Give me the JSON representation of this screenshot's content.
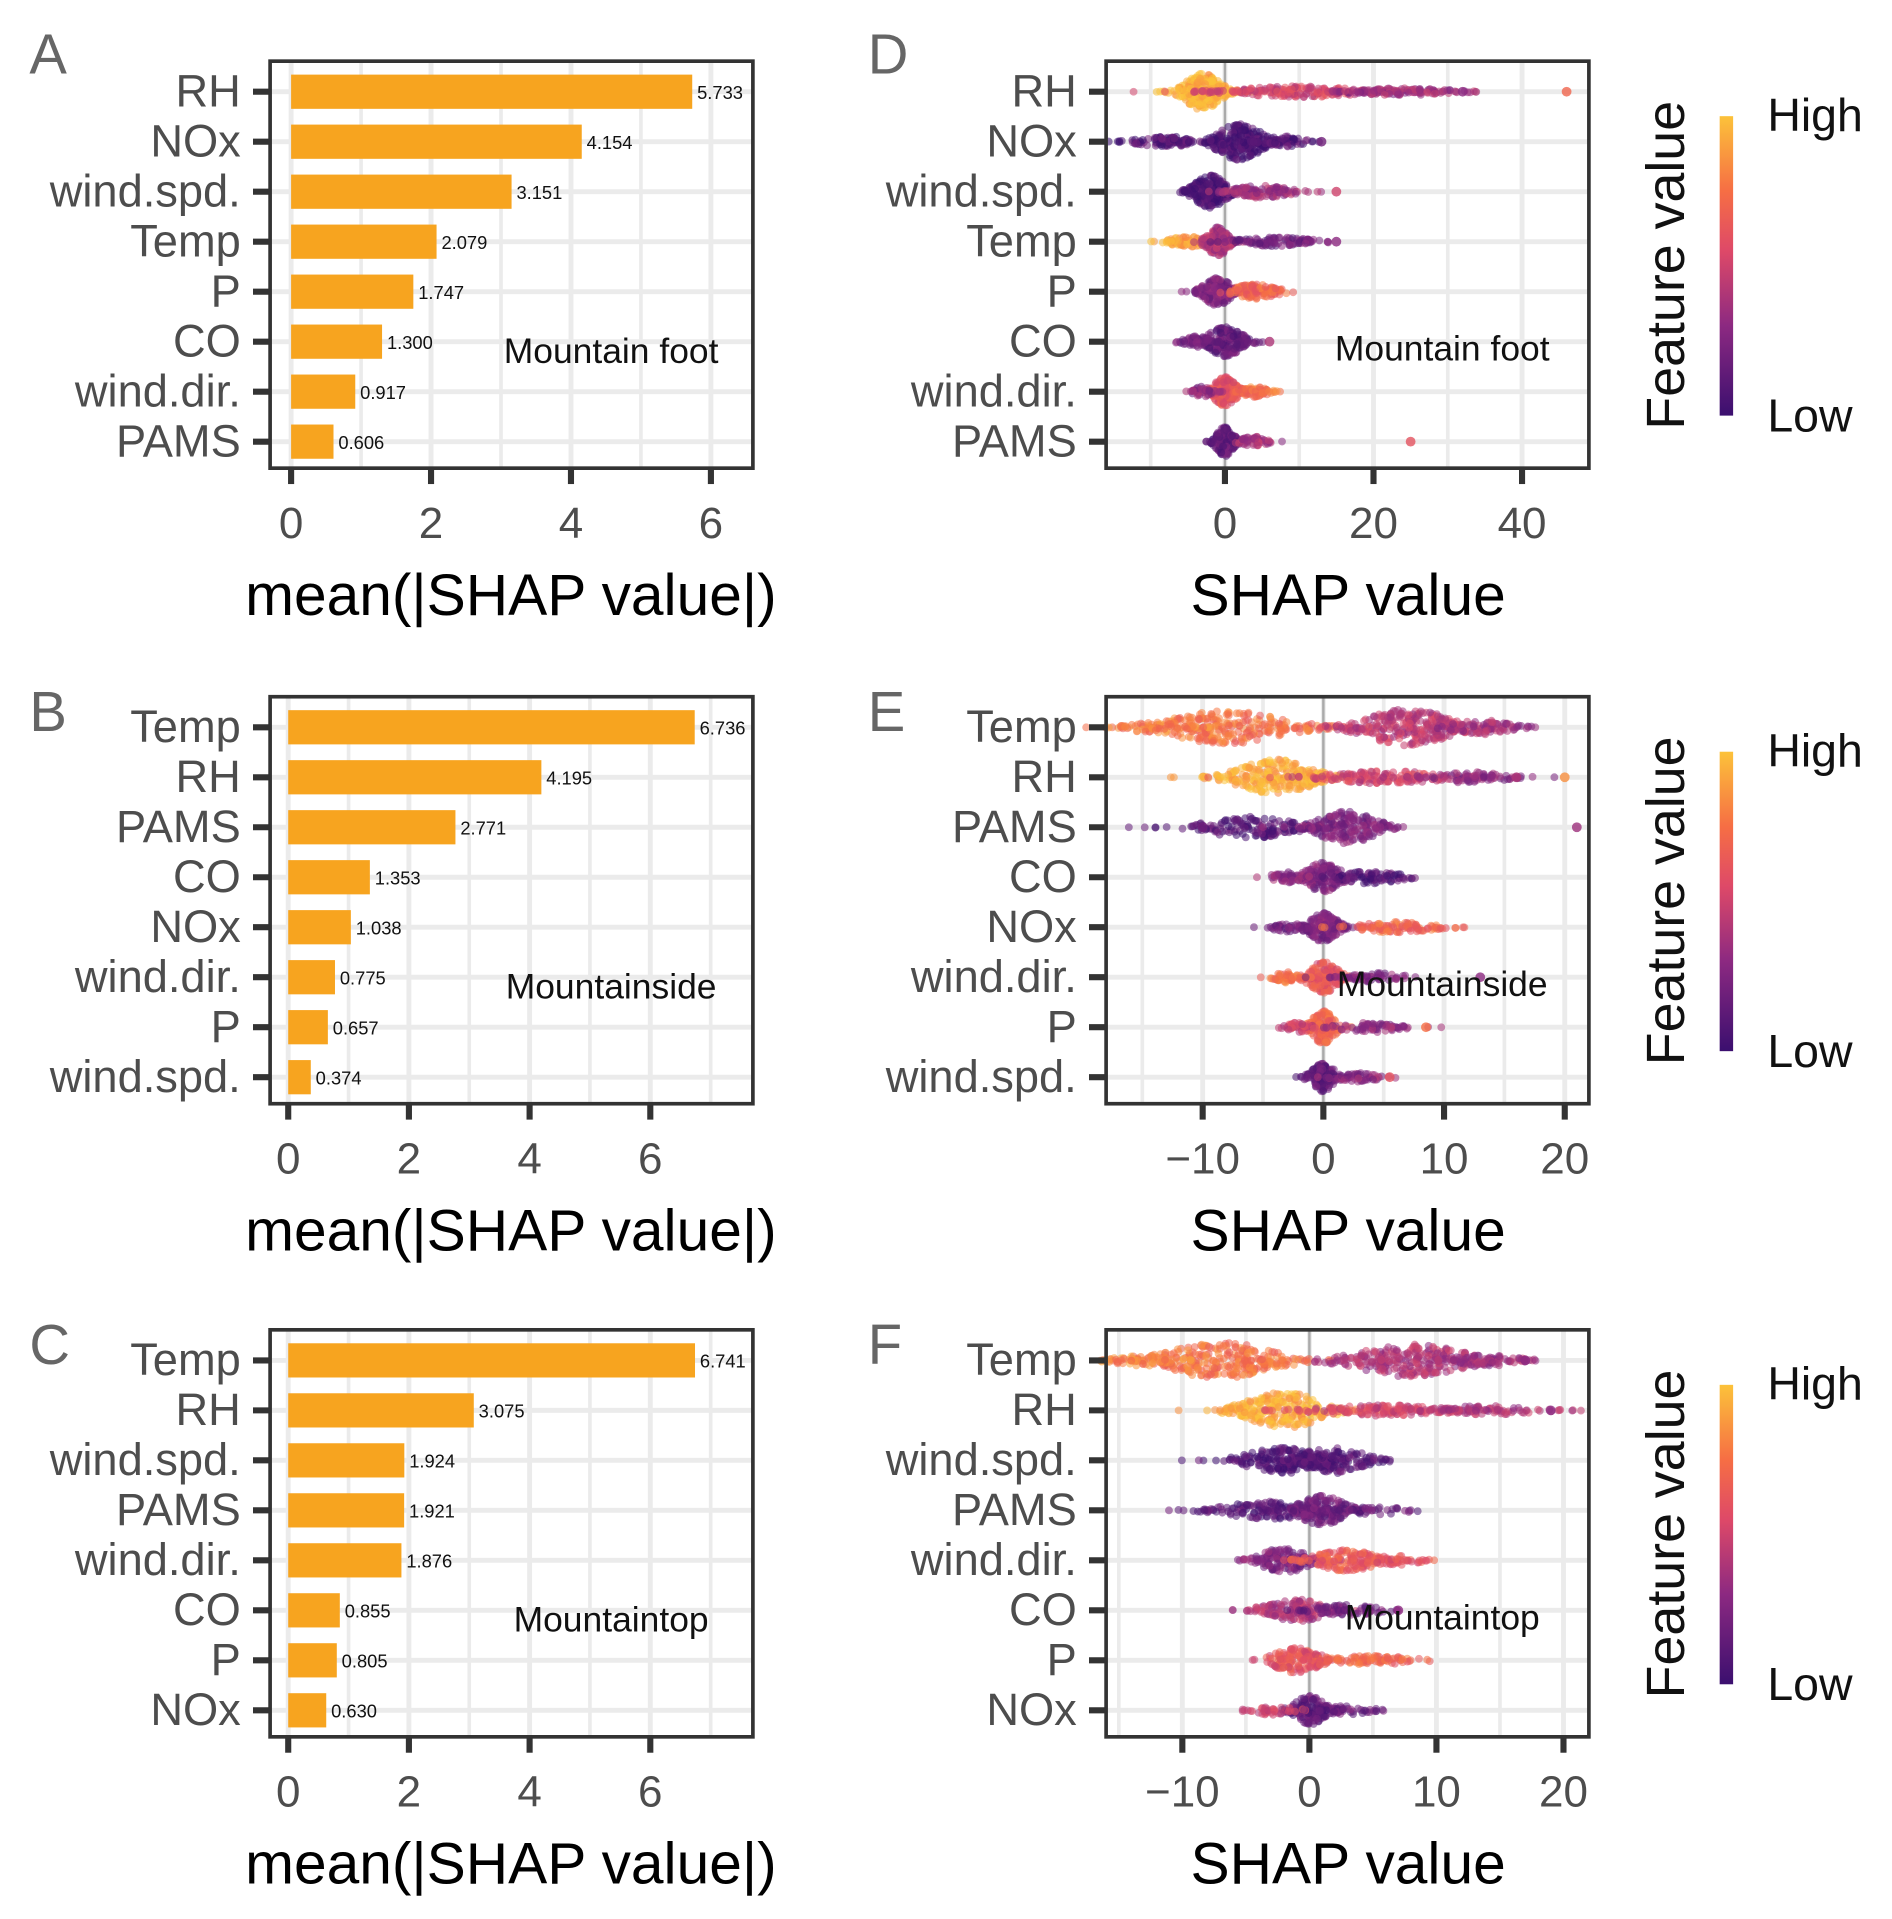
{
  "colors": {
    "bar": "#f7a41f",
    "grid": "#ebebeb",
    "frame": "#333333",
    "tick_text": "#4d4d4d",
    "colormap": [
      "#3b0f6f",
      "#8c2981",
      "#de4968",
      "#f66e44",
      "#fbb13c",
      "#fcd13a"
    ]
  },
  "chart_data": [
    {
      "id": "A",
      "type": "bar",
      "panel_label": "A",
      "annotation": "Mountain foot",
      "xlabel": "mean(|SHAP value|)",
      "xticks": [
        "0",
        "2",
        "4",
        "6"
      ],
      "xtick_values": [
        0,
        2,
        4,
        6
      ],
      "xlim": [
        -0.3,
        6.6
      ],
      "categories": [
        "RH",
        "NOx",
        "wind.spd.",
        "Temp",
        "P",
        "CO",
        "wind.dir.",
        "PAMS"
      ],
      "values": [
        5.733,
        4.154,
        3.151,
        2.079,
        1.747,
        1.3,
        0.917,
        0.606
      ],
      "labels": [
        "5.733",
        "4.154",
        "3.151",
        "2.079",
        "1.747",
        "1.300",
        "0.917",
        "0.606"
      ]
    },
    {
      "id": "B",
      "type": "bar",
      "panel_label": "B",
      "annotation": "Mountainside",
      "xlabel": "mean(|SHAP value|)",
      "xticks": [
        "0",
        "2",
        "4",
        "6"
      ],
      "xtick_values": [
        0,
        2,
        4,
        6
      ],
      "xlim": [
        -0.3,
        7.7
      ],
      "categories": [
        "Temp",
        "RH",
        "PAMS",
        "CO",
        "NOx",
        "wind.dir.",
        "P",
        "wind.spd."
      ],
      "values": [
        6.736,
        4.195,
        2.771,
        1.353,
        1.038,
        0.775,
        0.657,
        0.374
      ],
      "labels": [
        "6.736",
        "4.195",
        "2.771",
        "1.353",
        "1.038",
        "0.775",
        "0.657",
        "0.374"
      ]
    },
    {
      "id": "C",
      "type": "bar",
      "panel_label": "C",
      "annotation": "Mountaintop",
      "xlabel": "mean(|SHAP value|)",
      "xticks": [
        "0",
        "2",
        "4",
        "6"
      ],
      "xtick_values": [
        0,
        2,
        4,
        6
      ],
      "xlim": [
        -0.3,
        7.7
      ],
      "categories": [
        "Temp",
        "RH",
        "wind.spd.",
        "PAMS",
        "wind.dir.",
        "CO",
        "P",
        "NOx"
      ],
      "values": [
        6.741,
        3.075,
        1.924,
        1.921,
        1.876,
        0.855,
        0.805,
        0.63
      ],
      "labels": [
        "6.741",
        "3.075",
        "1.924",
        "1.921",
        "1.876",
        "0.855",
        "0.805",
        "0.630"
      ]
    },
    {
      "id": "D",
      "type": "scatter",
      "panel_label": "D",
      "annotation": "Mountain foot",
      "xlabel": "SHAP value",
      "xticks": [
        "0",
        "20",
        "40"
      ],
      "xtick_values": [
        0,
        20,
        40
      ],
      "xlim": [
        -16,
        49
      ],
      "legend": {
        "title": "Feature value",
        "high": "High",
        "low": "Low",
        "placement": "right"
      },
      "categories": [
        "RH",
        "NOx",
        "wind.spd.",
        "Temp",
        "P",
        "CO",
        "wind.dir.",
        "PAMS"
      ],
      "distributions": [
        {
          "segments": [
            [
              -3,
              2,
              1,
              0.95,
              250
            ],
            [
              10,
              7,
              0.3,
              0.5,
              200
            ],
            [
              24,
              5,
              0.2,
              0.35,
              120
            ]
          ],
          "outliers": [
            [
              46,
              0.7
            ],
            [
              32,
              0.3
            ]
          ]
        },
        {
          "segments": [
            [
              -8,
              3,
              0.3,
              0.1,
              100
            ],
            [
              2,
              2.5,
              1,
              0.05,
              250
            ],
            [
              8,
              2,
              0.3,
              0.1,
              60
            ]
          ],
          "outliers": [
            [
              13,
              0.2
            ]
          ]
        },
        {
          "segments": [
            [
              -2,
              1.8,
              0.9,
              0.05,
              220
            ],
            [
              5,
              3,
              0.35,
              0.35,
              120
            ]
          ],
          "outliers": [
            [
              15,
              0.5
            ]
          ]
        },
        {
          "segments": [
            [
              -5,
              2,
              0.3,
              0.9,
              80
            ],
            [
              -1,
              1.2,
              0.8,
              0.4,
              180
            ],
            [
              7,
              4,
              0.25,
              0.2,
              100
            ]
          ],
          "outliers": [
            [
              15,
              0.3
            ]
          ]
        },
        {
          "segments": [
            [
              -1,
              1.5,
              0.8,
              0.25,
              180
            ],
            [
              4,
              2.5,
              0.4,
              0.7,
              120
            ]
          ],
          "outliers": []
        },
        {
          "segments": [
            [
              0,
              2,
              0.8,
              0.15,
              200
            ],
            [
              -4,
              1.5,
              0.3,
              0.2,
              50
            ]
          ],
          "outliers": [
            [
              6,
              0.4
            ]
          ]
        },
        {
          "segments": [
            [
              0,
              1.3,
              0.8,
              0.6,
              180
            ],
            [
              4,
              1.5,
              0.3,
              0.75,
              60
            ],
            [
              -3,
              1,
              0.3,
              0.3,
              40
            ]
          ],
          "outliers": []
        },
        {
          "segments": [
            [
              0,
              1,
              0.8,
              0.15,
              180
            ],
            [
              4,
              1.5,
              0.3,
              0.4,
              50
            ]
          ],
          "outliers": [
            [
              25,
              0.6
            ]
          ]
        }
      ]
    },
    {
      "id": "E",
      "type": "scatter",
      "panel_label": "E",
      "annotation": "Mountainside",
      "xlabel": "SHAP value",
      "xticks": [
        "−10",
        "0",
        "10",
        "20"
      ],
      "xtick_values": [
        -10,
        0,
        10,
        20
      ],
      "xlim": [
        -18,
        22
      ],
      "legend": {
        "title": "Feature value",
        "high": "High",
        "low": "Low",
        "placement": "right"
      },
      "categories": [
        "Temp",
        "RH",
        "PAMS",
        "CO",
        "NOx",
        "wind.dir.",
        "P",
        "wind.spd."
      ],
      "distributions": [
        {
          "segments": [
            [
              -8,
              4,
              0.9,
              0.75,
              250
            ],
            [
              7,
              3,
              1,
              0.45,
              280
            ],
            [
              -14,
              2,
              0.3,
              0.8,
              60
            ],
            [
              13,
              2,
              0.4,
              0.35,
              80
            ]
          ],
          "outliers": []
        },
        {
          "segments": [
            [
              -4,
              2.5,
              1,
              0.95,
              250
            ],
            [
              5,
              4,
              0.35,
              0.5,
              150
            ],
            [
              12,
              2.5,
              0.3,
              0.3,
              80
            ]
          ],
          "outliers": [
            [
              20,
              0.85
            ],
            [
              16,
              0.4
            ]
          ]
        },
        {
          "segments": [
            [
              -6,
              3,
              0.6,
              0.1,
              150
            ],
            [
              2,
              2,
              0.9,
              0.25,
              200
            ]
          ],
          "outliers": [
            [
              21,
              0.35
            ],
            [
              -10,
              0.2
            ]
          ]
        },
        {
          "segments": [
            [
              0,
              1.2,
              0.8,
              0.25,
              160
            ],
            [
              4,
              2,
              0.35,
              0.1,
              80
            ],
            [
              -3,
              1,
              0.3,
              0.3,
              40
            ]
          ],
          "outliers": []
        },
        {
          "segments": [
            [
              0,
              1,
              0.8,
              0.25,
              160
            ],
            [
              6,
              2.5,
              0.3,
              0.7,
              100
            ],
            [
              -3,
              1,
              0.25,
              0.2,
              40
            ]
          ],
          "outliers": []
        },
        {
          "segments": [
            [
              0,
              1,
              0.9,
              0.6,
              150
            ],
            [
              -3,
              0.8,
              0.3,
              0.75,
              50
            ],
            [
              4,
              2,
              0.25,
              0.25,
              60
            ]
          ],
          "outliers": [
            [
              13,
              0.3
            ]
          ]
        },
        {
          "segments": [
            [
              0,
              0.8,
              0.9,
              0.7,
              150
            ],
            [
              4,
              2,
              0.3,
              0.3,
              70
            ],
            [
              -2,
              0.8,
              0.3,
              0.5,
              40
            ]
          ],
          "outliers": [
            [
              8.5,
              0.75
            ]
          ]
        },
        {
          "segments": [
            [
              0,
              0.8,
              0.8,
              0.15,
              150
            ],
            [
              3,
              1.5,
              0.25,
              0.3,
              50
            ]
          ],
          "outliers": [
            [
              5.5,
              0.6
            ]
          ]
        }
      ]
    },
    {
      "id": "F",
      "type": "scatter",
      "panel_label": "F",
      "annotation": "Mountaintop",
      "xlabel": "SHAP value",
      "xticks": [
        "−10",
        "0",
        "10",
        "20"
      ],
      "xtick_values": [
        -10,
        0,
        10,
        20
      ],
      "xlim": [
        -16,
        22
      ],
      "legend": {
        "title": "Feature value",
        "high": "High",
        "low": "Low",
        "placement": "right"
      },
      "categories": [
        "Temp",
        "RH",
        "wind.spd.",
        "PAMS",
        "wind.dir.",
        "CO",
        "P",
        "NOx"
      ],
      "distributions": [
        {
          "segments": [
            [
              -7,
              3.5,
              1,
              0.75,
              280
            ],
            [
              8,
              3.5,
              0.9,
              0.4,
              280
            ],
            [
              -13,
              2,
              0.3,
              0.8,
              60
            ],
            [
              14,
              2,
              0.3,
              0.35,
              60
            ]
          ],
          "outliers": [
            [
              17,
              0.3
            ]
          ]
        },
        {
          "segments": [
            [
              -2,
              2.5,
              1,
              0.95,
              250
            ],
            [
              6,
              4,
              0.3,
              0.5,
              150
            ],
            [
              14,
              3,
              0.25,
              0.4,
              80
            ]
          ],
          "outliers": [
            [
              19,
              0.3
            ]
          ]
        },
        {
          "segments": [
            [
              -2,
              2.5,
              0.7,
              0.08,
              200
            ],
            [
              2,
              2,
              0.7,
              0.1,
              150
            ]
          ],
          "outliers": []
        },
        {
          "segments": [
            [
              -3,
              3,
              0.5,
              0.1,
              160
            ],
            [
              1,
              1.5,
              0.8,
              0.2,
              150
            ],
            [
              5,
              2,
              0.25,
              0.15,
              40
            ]
          ],
          "outliers": []
        },
        {
          "segments": [
            [
              -2,
              1.5,
              0.7,
              0.25,
              140
            ],
            [
              3,
              2,
              0.6,
              0.65,
              150
            ],
            [
              7,
              1.5,
              0.25,
              0.6,
              40
            ]
          ],
          "outliers": []
        },
        {
          "segments": [
            [
              -1,
              2,
              0.6,
              0.4,
              150
            ],
            [
              3,
              2,
              0.3,
              0.2,
              60
            ]
          ],
          "outliers": [
            [
              7,
              0.3
            ]
          ]
        },
        {
          "segments": [
            [
              -1,
              1.5,
              0.7,
              0.6,
              150
            ],
            [
              5,
              2.5,
              0.25,
              0.7,
              80
            ]
          ],
          "outliers": []
        },
        {
          "segments": [
            [
              0,
              1,
              0.8,
              0.15,
              150
            ],
            [
              -3,
              1.5,
              0.25,
              0.5,
              40
            ],
            [
              3,
              1.5,
              0.25,
              0.2,
              40
            ]
          ],
          "outliers": []
        }
      ]
    }
  ]
}
